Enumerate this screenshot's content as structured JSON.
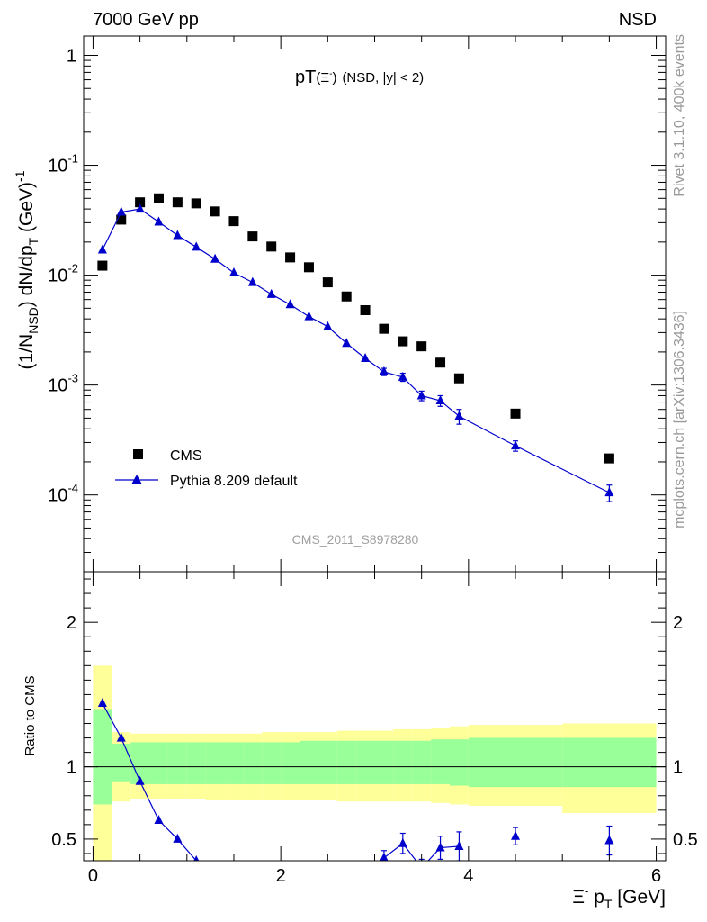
{
  "header": {
    "left": "7000 GeV pp",
    "right": "NSD"
  },
  "side_labels": {
    "top": "Rivet 3.1.10,  400k events",
    "bottom": "mcplots.cern.ch [arXiv:1306.3436]"
  },
  "watermark": "CMS_2011_S8978280",
  "colors": {
    "data": "#000000",
    "mc": "#0000cc",
    "band_inner": "#99ff99",
    "band_outer": "#ffff99"
  },
  "chart_data": [
    {
      "type": "scatter",
      "title_main": "pT",
      "title_particle": "(Ξ",
      "title_particle_sup": "-",
      "title_particle_close": ")",
      "title_rest": "(NSD, |y| < 2)",
      "ylabel": {
        "pre": "(1/N",
        "sub": "NSD",
        "mid": ") dN/dp",
        "sub2": "T",
        "post": " (GeV)",
        "sup": "-1"
      },
      "yscale": "log",
      "xlim": [
        -0.1,
        6.1
      ],
      "ylim": [
        2e-05,
        1.5
      ],
      "ytick_labels": [
        {
          "base": "1",
          "exp": ""
        },
        {
          "base": "10",
          "exp": "-1"
        },
        {
          "base": "10",
          "exp": "-2"
        },
        {
          "base": "10",
          "exp": "-3"
        },
        {
          "base": "10",
          "exp": "-4"
        }
      ],
      "legend": [
        "CMS",
        "Pythia 8.209 default"
      ],
      "legend_position": "bottom-left",
      "series": [
        {
          "name": "CMS",
          "marker": "square",
          "x": [
            0.1,
            0.3,
            0.5,
            0.7,
            0.9,
            1.1,
            1.3,
            1.5,
            1.7,
            1.9,
            2.1,
            2.3,
            2.5,
            2.7,
            2.9,
            3.1,
            3.3,
            3.5,
            3.7,
            3.9,
            4.5,
            5.5
          ],
          "y": [
            0.0122,
            0.032,
            0.046,
            0.05,
            0.046,
            0.045,
            0.038,
            0.031,
            0.0225,
            0.0182,
            0.0145,
            0.0118,
            0.0086,
            0.0064,
            0.0048,
            0.00325,
            0.0025,
            0.00225,
            0.0016,
            0.00115,
            0.00055,
            0.000215
          ]
        },
        {
          "name": "Pythia 8.209 default",
          "marker": "triangle",
          "x": [
            0.1,
            0.3,
            0.5,
            0.7,
            0.9,
            1.1,
            1.3,
            1.5,
            1.7,
            1.9,
            2.1,
            2.3,
            2.5,
            2.7,
            2.9,
            3.1,
            3.3,
            3.5,
            3.7,
            3.9,
            4.5,
            5.5
          ],
          "y": [
            0.017,
            0.0375,
            0.04,
            0.0305,
            0.023,
            0.018,
            0.014,
            0.0105,
            0.0086,
            0.0067,
            0.0054,
            0.0042,
            0.0034,
            0.0024,
            0.00175,
            0.00132,
            0.00118,
            0.0008,
            0.00072,
            0.00052,
            0.00028,
            0.000105
          ],
          "yerr": [
            0.0003,
            0.0005,
            0.0005,
            0.0004,
            0.0003,
            0.0003,
            0.0002,
            0.0002,
            0.00015,
            0.00012,
            0.0001,
            8e-05,
            7e-05,
            6e-05,
            5e-05,
            0.0001,
            0.0001,
            8e-05,
            8e-05,
            8e-05,
            3e-05,
            1.8e-05
          ]
        }
      ]
    },
    {
      "type": "line",
      "ylabel": "Ratio to CMS",
      "xlabel": {
        "particle": "Ξ",
        "sup": "-",
        "main": " p",
        "sub": "T",
        "unit": " [GeV]"
      },
      "xlim": [
        -0.1,
        6.1
      ],
      "ylim": [
        0.35,
        2.35
      ],
      "xticks": [
        0,
        2,
        4,
        6
      ],
      "xtick_labels": [
        "0",
        "2",
        "4",
        "6"
      ],
      "yticks": [
        0.5,
        1,
        2
      ],
      "ytick_labels": [
        "0.5",
        "1",
        "2"
      ],
      "reference_line": 1,
      "bands": [
        {
          "x0": [
            0.0,
            0.2,
            0.4,
            0.6,
            0.8,
            1.0,
            1.2,
            1.4,
            1.6,
            1.8,
            2.0,
            2.2,
            2.4,
            2.6,
            2.8,
            3.0,
            3.2,
            3.4,
            3.6,
            3.8,
            4.0,
            5.0
          ],
          "x1": [
            0.2,
            0.4,
            0.6,
            0.8,
            1.0,
            1.2,
            1.4,
            1.6,
            1.8,
            2.0,
            2.2,
            2.4,
            2.6,
            2.8,
            3.0,
            3.2,
            3.4,
            3.6,
            3.8,
            4.0,
            5.0,
            6.0
          ],
          "inner_lo": [
            0.74,
            0.9,
            0.88,
            0.88,
            0.88,
            0.88,
            0.88,
            0.88,
            0.88,
            0.88,
            0.88,
            0.88,
            0.88,
            0.88,
            0.88,
            0.88,
            0.88,
            0.88,
            0.88,
            0.87,
            0.86,
            0.86
          ],
          "inner_hi": [
            1.4,
            1.16,
            1.17,
            1.17,
            1.17,
            1.17,
            1.17,
            1.17,
            1.17,
            1.17,
            1.17,
            1.18,
            1.18,
            1.18,
            1.18,
            1.18,
            1.18,
            1.18,
            1.19,
            1.19,
            1.2,
            1.2
          ],
          "outer_lo": [
            0.0,
            0.76,
            0.78,
            0.78,
            0.78,
            0.78,
            0.77,
            0.77,
            0.77,
            0.77,
            0.77,
            0.77,
            0.77,
            0.76,
            0.76,
            0.76,
            0.76,
            0.76,
            0.75,
            0.74,
            0.73,
            0.68
          ],
          "outer_hi": [
            1.7,
            1.24,
            1.23,
            1.23,
            1.23,
            1.23,
            1.23,
            1.23,
            1.23,
            1.24,
            1.24,
            1.24,
            1.24,
            1.25,
            1.25,
            1.25,
            1.26,
            1.26,
            1.27,
            1.28,
            1.29,
            1.3
          ]
        }
      ],
      "series": [
        {
          "name": "Pythia 8.209 default",
          "x": [
            0.1,
            0.3,
            0.5,
            0.7,
            0.9,
            1.1,
            1.3,
            3.1,
            3.3,
            3.5,
            3.7,
            3.9,
            4.5,
            5.5
          ],
          "y": [
            1.44,
            1.2,
            0.9,
            0.63,
            0.5,
            0.35,
            0.28,
            0.37,
            0.47,
            0.3,
            0.44,
            0.45,
            0.52,
            0.49
          ],
          "yerr": [
            0.02,
            0.02,
            0.01,
            0.01,
            0.01,
            0.01,
            0.01,
            0.05,
            0.07,
            0.06,
            0.08,
            0.1,
            0.06,
            0.1
          ]
        }
      ]
    }
  ]
}
